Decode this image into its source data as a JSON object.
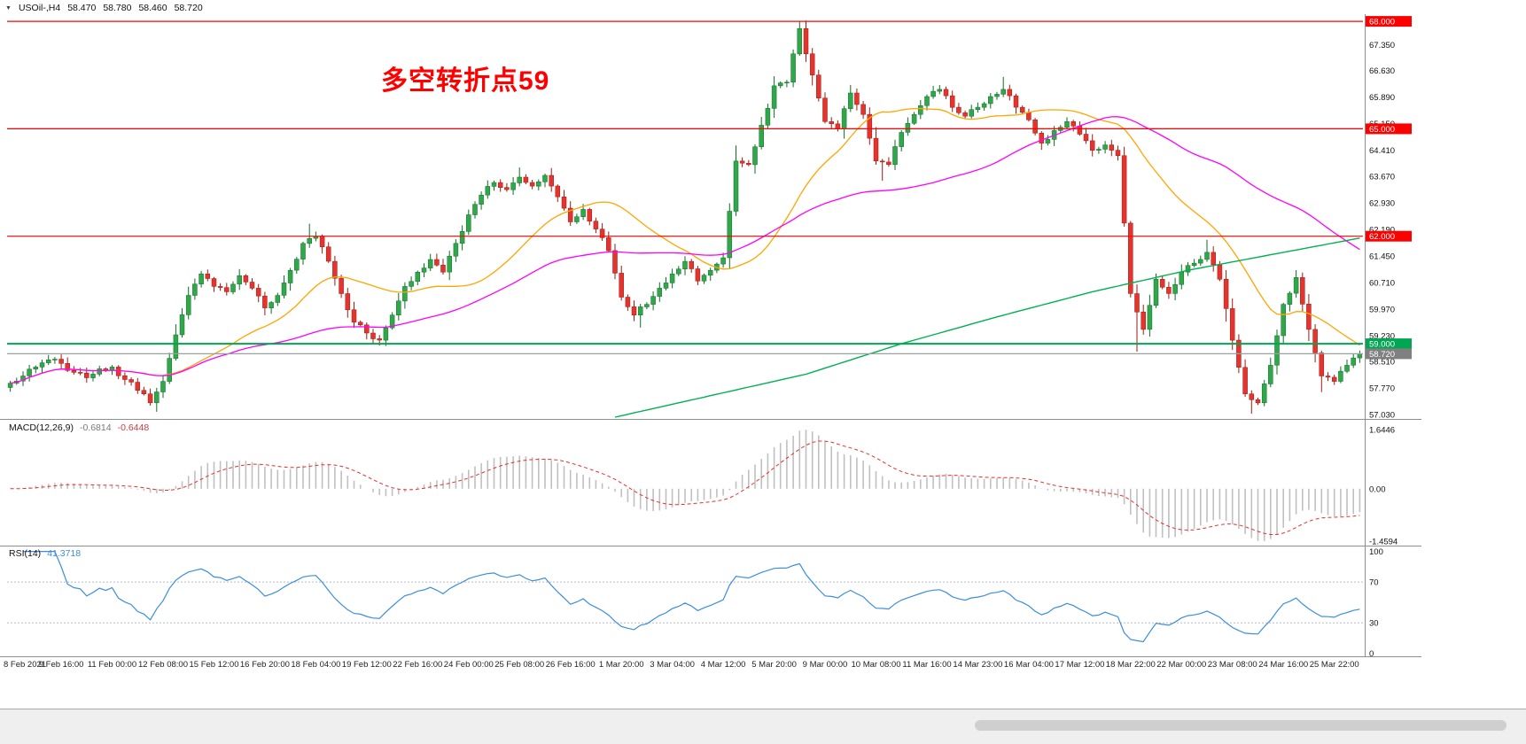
{
  "header": {
    "collapse_icon": "▼",
    "symbol_period": "USOil-,H4",
    "open": "58.470",
    "high": "58.780",
    "low": "58.460",
    "close": "58.720"
  },
  "annotation": {
    "text": "多空转折点59",
    "color": "#FF0000"
  },
  "colors": {
    "up": "#30A74B",
    "up_border": "#0E6F23",
    "down": "#E5342E",
    "down_border": "#9E1A12",
    "ma_fast": "#FFA500",
    "ma_mid": "#FF00FF",
    "ma_slow": "#00B050",
    "level_red": "#FF0000",
    "level_green": "#00A651",
    "price_line": "#9AA0A0",
    "badge_gray": "#808080",
    "macd_hist": "#C0C0C0",
    "macd_signal": "#E53030",
    "rsi_line": "#3B8EDE"
  },
  "main_pane": {
    "y_ticks": [
      "67.350",
      "66.630",
      "65.890",
      "65.150",
      "64.410",
      "63.670",
      "62.930",
      "62.190",
      "61.450",
      "60.710",
      "59.970",
      "59.230",
      "58.510",
      "57.770",
      "57.030"
    ],
    "levels": [
      {
        "value": 68.0,
        "label": "68.000",
        "type": "red"
      },
      {
        "value": 65.0,
        "label": "65.000",
        "type": "red"
      },
      {
        "value": 62.0,
        "label": "62.000",
        "type": "red"
      },
      {
        "value": 59.0,
        "label": "59.000",
        "type": "green"
      },
      {
        "value": 58.72,
        "label": "58.720",
        "type": "price"
      }
    ]
  },
  "macd_pane": {
    "name": "MACD(12,26,9)",
    "value_main": "-0.6814",
    "value_signal": "-0.6448",
    "ticks": [
      {
        "v": 1.6446,
        "label": "1.6446"
      },
      {
        "v": 0,
        "label": "0.00"
      },
      {
        "v": -1.4594,
        "label": "-1.4594"
      }
    ]
  },
  "rsi_pane": {
    "name": "RSI(14)",
    "value": "41.3718",
    "ticks": [
      {
        "v": 100,
        "label": "100"
      },
      {
        "v": 70,
        "label": "70"
      },
      {
        "v": 30,
        "label": "30"
      },
      {
        "v": 0,
        "label": "0"
      }
    ]
  },
  "x_axis": {
    "bars_per_label": 8,
    "labels": [
      "8 Feb 2021",
      "9 Feb 16:00",
      "11 Feb 00:00",
      "12 Feb 08:00",
      "15 Feb 12:00",
      "16 Feb 20:00",
      "18 Feb 04:00",
      "19 Feb 12:00",
      "22 Feb 16:00",
      "24 Feb 00:00",
      "25 Feb 08:00",
      "26 Feb 16:00",
      "1 Mar 20:00",
      "3 Mar 04:00",
      "4 Mar 12:00",
      "5 Mar 20:00",
      "9 Mar 00:00",
      "10 Mar 08:00",
      "11 Mar 16:00",
      "14 Mar 23:00",
      "16 Mar 04:00",
      "17 Mar 12:00",
      "18 Mar 22:00",
      "22 Mar 00:00",
      "23 Mar 08:00",
      "24 Mar 16:00",
      "25 Mar 22:00"
    ]
  },
  "chart_data": [
    {
      "type": "candlestick",
      "title": "USOil-,H4",
      "ylim": [
        56.95,
        68.15
      ],
      "path_step": 2,
      "close_path": [
        57.9,
        58.1,
        58.35,
        58.55,
        58.45,
        58.2,
        58.05,
        58.3,
        58.35,
        58.0,
        57.7,
        57.35,
        57.95,
        59.25,
        60.35,
        60.95,
        60.6,
        60.45,
        60.9,
        60.55,
        60.0,
        60.35,
        61.05,
        61.8,
        62.0,
        61.3,
        60.4,
        59.6,
        59.3,
        59.1,
        59.8,
        60.6,
        61.0,
        61.35,
        61.0,
        61.8,
        62.6,
        63.15,
        63.5,
        63.3,
        63.65,
        63.4,
        63.7,
        63.1,
        62.4,
        62.75,
        62.2,
        61.6,
        60.3,
        59.8,
        60.1,
        60.55,
        60.95,
        61.3,
        60.75,
        61.05,
        61.4,
        64.1,
        64.0,
        65.1,
        66.2,
        66.3,
        67.8,
        66.5,
        65.2,
        65.0,
        66.0,
        65.4,
        64.1,
        64.0,
        64.9,
        65.4,
        65.9,
        66.1,
        65.6,
        65.35,
        65.6,
        65.9,
        66.1,
        65.6,
        65.25,
        64.6,
        64.95,
        65.2,
        64.85,
        64.4,
        64.55,
        64.25,
        60.4,
        59.4,
        60.8,
        60.4,
        61.0,
        61.25,
        61.55,
        60.8,
        59.1,
        57.6,
        57.35,
        58.4,
        60.1,
        60.85,
        59.4,
        58.1,
        57.95,
        58.4,
        58.72
      ],
      "spikes": [
        {
          "b": 23,
          "low": 57.1
        },
        {
          "b": 47,
          "high": 62.35
        },
        {
          "b": 58,
          "low": 58.95
        },
        {
          "b": 80,
          "high": 63.92
        },
        {
          "b": 99,
          "low": 59.45
        },
        {
          "b": 124,
          "high": 68.0
        },
        {
          "b": 137,
          "low": 63.55
        },
        {
          "b": 156,
          "high": 66.45
        },
        {
          "b": 177,
          "low": 58.78
        },
        {
          "b": 188,
          "high": 61.9
        },
        {
          "b": 195,
          "low": 57.05
        },
        {
          "b": 202,
          "high": 61.05
        },
        {
          "b": 206,
          "low": 57.65
        }
      ],
      "moving_averages": [
        {
          "name": "fast",
          "period": 24,
          "color": "#FFA500"
        },
        {
          "name": "mid",
          "period": 60,
          "color": "#FF00FF"
        },
        {
          "name": "slow",
          "color": "#00B050",
          "points": [
            [
              95,
              56.95
            ],
            [
              110,
              57.55
            ],
            [
              125,
              58.15
            ],
            [
              140,
              59.0
            ],
            [
              155,
              59.75
            ],
            [
              170,
              60.45
            ],
            [
              185,
              61.05
            ],
            [
              200,
              61.55
            ],
            [
              212,
              61.95
            ]
          ]
        }
      ],
      "horizontal_levels": [
        68.0,
        65.0,
        62.0,
        59.0,
        58.72
      ]
    },
    {
      "type": "bar",
      "indicator": "MACD",
      "params": [
        12,
        26,
        9
      ],
      "display_values": [
        -0.6814,
        -0.6448
      ],
      "ylim": [
        -1.51,
        1.87
      ],
      "yticks": [
        1.6446,
        0,
        -1.4594
      ],
      "derived_from": "chart_data[0].close_path"
    },
    {
      "type": "line",
      "indicator": "RSI",
      "period": 14,
      "display_value": 41.3718,
      "ylim": [
        0,
        100
      ],
      "levels": [
        70,
        30
      ],
      "yticks": [
        100,
        70,
        30,
        0
      ],
      "derived_from": "chart_data[0].close_path"
    }
  ]
}
